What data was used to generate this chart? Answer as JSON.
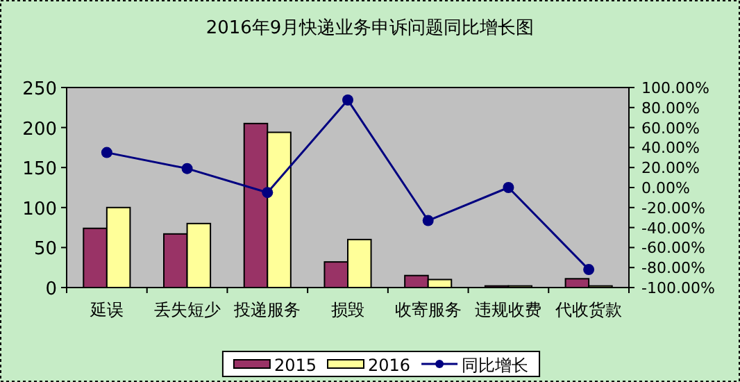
{
  "chart_data": {
    "type": "bar",
    "title": "2016年9月快递业务申诉问题同比增长图",
    "categories": [
      "延误",
      "丢失短少",
      "投递服务",
      "损毁",
      "收寄服务",
      "违规收费",
      "代收货款"
    ],
    "series": [
      {
        "name": "2015",
        "color": "#993366",
        "values": [
          74,
          67,
          205,
          32,
          15,
          2,
          11
        ]
      },
      {
        "name": "2016",
        "color": "#ffff99",
        "values": [
          100,
          80,
          194,
          60,
          10,
          2,
          2
        ]
      },
      {
        "name": "同比增长",
        "type": "line",
        "axis": "y2",
        "color": "#000080",
        "marker": "circle",
        "values": [
          35,
          19,
          -5,
          87.5,
          -33,
          0,
          -82
        ]
      }
    ],
    "ylim": [
      0,
      250
    ],
    "yticks": [
      0,
      50,
      100,
      150,
      200,
      250
    ],
    "y2lim": [
      -100,
      100
    ],
    "y2ticks": [
      {
        "value": -100,
        "label": "-100.00%"
      },
      {
        "value": -80,
        "label": "-80.00%"
      },
      {
        "value": -60,
        "label": "-60.00%"
      },
      {
        "value": -40,
        "label": "-40.00%"
      },
      {
        "value": -20,
        "label": "-20.00%"
      },
      {
        "value": 0,
        "label": "0.00%"
      },
      {
        "value": 20,
        "label": "20.00%"
      },
      {
        "value": 40,
        "label": "40.00%"
      },
      {
        "value": 60,
        "label": "60.00%"
      },
      {
        "value": 80,
        "label": "80.00%"
      },
      {
        "value": 100,
        "label": "100.00%"
      }
    ],
    "legend": "bottom"
  }
}
